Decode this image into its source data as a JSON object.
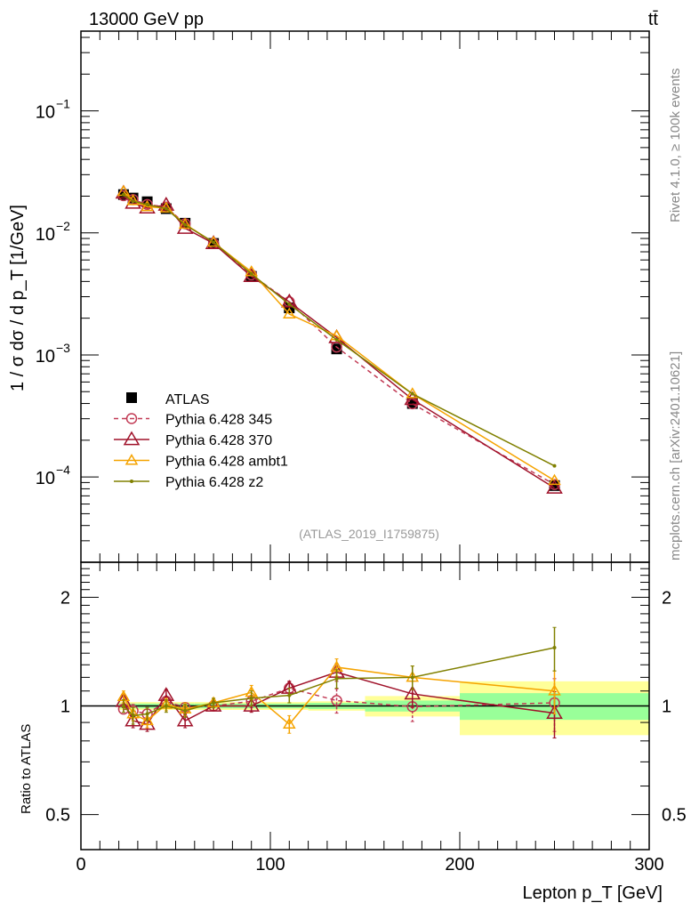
{
  "header": {
    "left": "13000 GeV pp",
    "right": "tt̄"
  },
  "side_texts": {
    "rivet": "Rivet 4.1.0, ≥ 100k events",
    "mcplots": "mcplots.cern.ch [arXiv:2401.10621]"
  },
  "analysis_id": "(ATLAS_2019_I1759875)",
  "chart_data": [
    {
      "type": "line",
      "panel": "main",
      "ylabel": "1 / σ dσ / d p_T [1/GeV]",
      "yscale": "log",
      "ylim": [
        2e-05,
        0.45
      ],
      "xlim": [
        0,
        300
      ],
      "ytick_labels": [
        {
          "v": 0.1,
          "base": "10",
          "exp": "−1"
        },
        {
          "v": 0.01,
          "base": "10",
          "exp": "−2"
        },
        {
          "v": 0.001,
          "base": "10",
          "exp": "−3"
        },
        {
          "v": 0.0001,
          "base": "10",
          "exp": "−4"
        }
      ],
      "x": [
        22.5,
        27.5,
        35,
        45,
        55,
        70,
        90,
        110,
        135,
        175,
        250
      ],
      "atlas": [
        0.0206,
        0.0193,
        0.018,
        0.0158,
        0.012,
        0.0082,
        0.0044,
        0.00243,
        0.00112,
        0.0004,
        8.5e-05
      ],
      "legend_position": "bottom-left",
      "legend": [
        "ATLAS",
        "Pythia 6.428 345",
        "Pythia 6.428 370",
        "Pythia 6.428 ambt1",
        "Pythia 6.428 z2"
      ]
    },
    {
      "type": "line",
      "panel": "ratio",
      "ylabel": "Ratio to ATLAS",
      "xlabel": "Lepton p_T [GeV]",
      "yscale": "log",
      "ylim": [
        0.4,
        2.5
      ],
      "xlim": [
        0,
        300
      ],
      "yticks": [
        0.5,
        1,
        2
      ],
      "ytick_labels": [
        "0.5",
        "1",
        "2"
      ],
      "xticks": [
        0,
        100,
        200,
        300
      ],
      "xtick_labels": [
        "0",
        "100",
        "200",
        "300"
      ],
      "bin_edges": [
        20,
        25,
        30,
        40,
        50,
        60,
        80,
        100,
        120,
        150,
        200,
        300
      ],
      "band_inner": [
        0.015,
        0.015,
        0.015,
        0.015,
        0.015,
        0.015,
        0.015,
        0.015,
        0.02,
        0.035,
        0.085
      ],
      "band_outer": [
        0.025,
        0.025,
        0.025,
        0.025,
        0.025,
        0.025,
        0.025,
        0.025,
        0.03,
        0.065,
        0.17
      ],
      "series": [
        {
          "name": "Pythia 6.428 345",
          "color": "#c23b55",
          "marker": "circle",
          "dashed": true,
          "ratio": [
            0.98,
            0.97,
            0.95,
            1.03,
            0.99,
            1.0,
            1.03,
            1.12,
            1.035,
            0.995,
            1.02
          ],
          "err": [
            0.03,
            0.04,
            0.04,
            0.03,
            0.03,
            0.03,
            0.04,
            0.05,
            0.08,
            0.09,
            0.17
          ]
        },
        {
          "name": "Pythia 6.428 370",
          "color": "#a0122a",
          "marker": "triangle-open-large",
          "dashed": false,
          "ratio": [
            1.03,
            0.91,
            0.89,
            1.07,
            0.91,
            1.0,
            1.0,
            1.12,
            1.24,
            1.08,
            0.955
          ],
          "err": [
            0.04,
            0.04,
            0.04,
            0.04,
            0.04,
            0.03,
            0.04,
            0.05,
            0.07,
            0.09,
            0.14
          ]
        },
        {
          "name": "Pythia 6.428 ambt1",
          "color": "#f5a300",
          "marker": "triangle-open",
          "dashed": false,
          "ratio": [
            1.06,
            0.95,
            0.91,
            1.01,
            0.98,
            1.02,
            1.09,
            0.89,
            1.28,
            1.2,
            1.1
          ],
          "err": [
            0.04,
            0.04,
            0.04,
            0.04,
            0.04,
            0.03,
            0.05,
            0.05,
            0.07,
            0.09,
            0.15
          ]
        },
        {
          "name": "Pythia 6.428 z2",
          "color": "#808000",
          "marker": "dot",
          "dashed": false,
          "ratio": [
            1.0,
            0.94,
            0.95,
            1.0,
            0.97,
            1.02,
            1.05,
            1.07,
            1.19,
            1.2,
            1.45
          ],
          "err": [
            0.04,
            0.05,
            0.04,
            0.04,
            0.04,
            0.03,
            0.05,
            0.05,
            0.07,
            0.09,
            0.2
          ]
        }
      ]
    }
  ]
}
